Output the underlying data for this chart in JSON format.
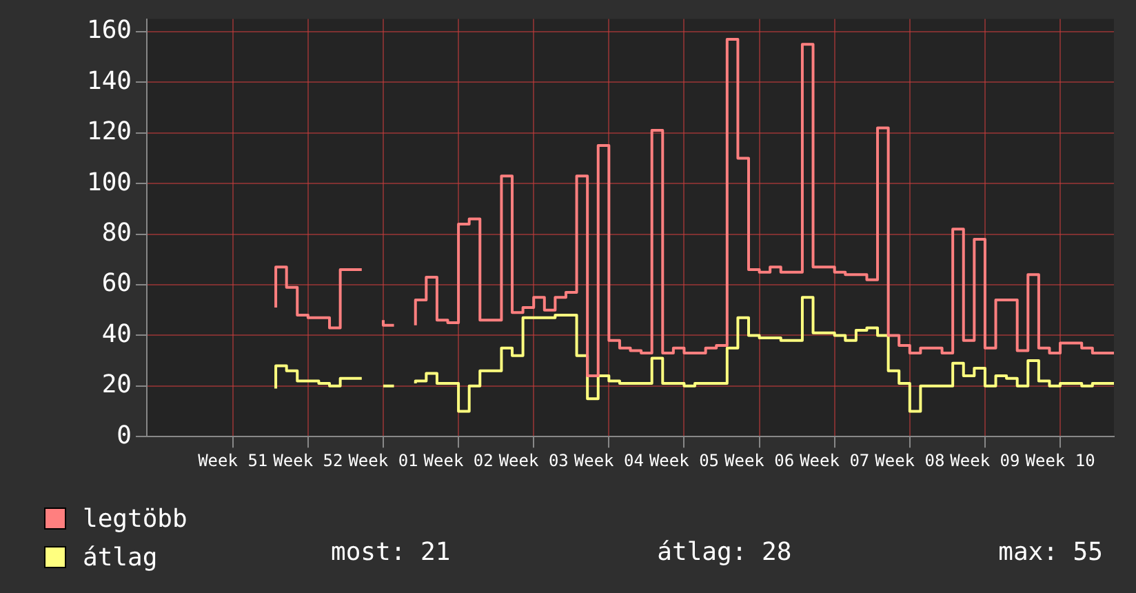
{
  "chart_data": {
    "type": "step",
    "categories": [
      null,
      null,
      null,
      null,
      null,
      null,
      null,
      null,
      "Week 51",
      null,
      null,
      null,
      null,
      null,
      null,
      "Week 52",
      null,
      null,
      null,
      null,
      null,
      null,
      "Week 01",
      null,
      null,
      null,
      null,
      null,
      null,
      "Week 02",
      null,
      null,
      null,
      null,
      null,
      null,
      "Week 03",
      null,
      null,
      null,
      null,
      null,
      null,
      "Week 04",
      null,
      null,
      null,
      null,
      null,
      null,
      "Week 05",
      null,
      null,
      null,
      null,
      null,
      null,
      "Week 06",
      null,
      null,
      null,
      null,
      null,
      null,
      "Week 07",
      null,
      null,
      null,
      null,
      null,
      null,
      "Week 08",
      null,
      null,
      null,
      null,
      null,
      null,
      "Week 09",
      null,
      null,
      null,
      null,
      null,
      null,
      "Week 10",
      null,
      null,
      null,
      null,
      null
    ],
    "ylim": [
      0,
      165
    ],
    "yticks": [
      0,
      20,
      40,
      60,
      80,
      100,
      120,
      140,
      160
    ],
    "grid": true,
    "legend": "bottom",
    "series": [
      {
        "name": "legtöbb",
        "color": "#ff7f7f",
        "values": [
          null,
          null,
          null,
          null,
          null,
          null,
          null,
          null,
          null,
          null,
          null,
          null,
          51,
          67,
          59,
          48,
          47,
          47,
          43,
          66,
          66,
          null,
          46,
          44,
          null,
          44,
          54,
          63,
          46,
          45,
          84,
          86,
          46,
          46,
          103,
          49,
          51,
          55,
          50,
          55,
          57,
          103,
          24,
          115,
          38,
          35,
          34,
          33,
          121,
          33,
          35,
          33,
          33,
          35,
          36,
          157,
          110,
          66,
          65,
          67,
          65,
          65,
          155,
          67,
          67,
          65,
          64,
          64,
          62,
          122,
          40,
          36,
          33,
          35,
          35,
          33,
          82,
          38,
          78,
          35,
          54,
          54,
          34,
          64,
          35,
          33,
          37,
          37,
          35,
          33,
          33
        ]
      },
      {
        "name": "átlag",
        "color": "#ffff7f",
        "values": [
          null,
          null,
          null,
          null,
          null,
          null,
          null,
          null,
          null,
          null,
          null,
          null,
          19,
          28,
          26,
          22,
          22,
          21,
          20,
          23,
          23,
          null,
          20,
          20,
          null,
          21,
          22,
          25,
          21,
          21,
          10,
          20,
          26,
          26,
          35,
          32,
          47,
          47,
          47,
          48,
          48,
          32,
          15,
          24,
          22,
          21,
          21,
          21,
          31,
          21,
          21,
          20,
          21,
          21,
          21,
          35,
          47,
          40,
          39,
          39,
          38,
          38,
          55,
          41,
          41,
          40,
          38,
          42,
          43,
          40,
          26,
          21,
          10,
          20,
          20,
          20,
          29,
          24,
          27,
          20,
          24,
          23,
          20,
          30,
          22,
          20,
          21,
          21,
          20,
          21,
          21
        ]
      }
    ],
    "annotations": [
      "most: 21",
      "átlag: 28",
      "max: 55"
    ]
  }
}
